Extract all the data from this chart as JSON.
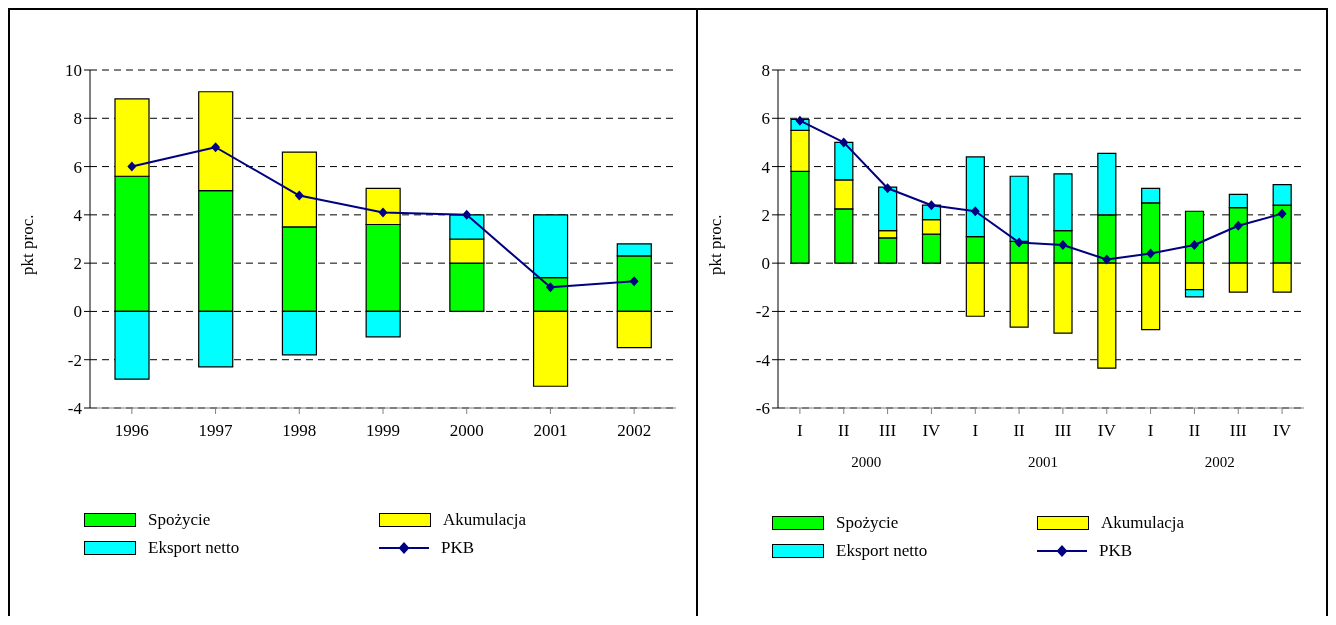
{
  "chart_data": [
    {
      "type": "bar",
      "stacked": true,
      "ylabel": "pkt proc.",
      "categories": [
        "1996",
        "1997",
        "1998",
        "1999",
        "2000",
        "2001",
        "2002"
      ],
      "ylim": [
        -4,
        10
      ],
      "yticks": [
        -4,
        -2,
        0,
        2,
        4,
        6,
        8,
        10
      ],
      "grid": "y",
      "legend": "bottom",
      "marker": "diamond",
      "series": [
        {
          "name": "Spożycie",
          "color": "#00ff00",
          "values": [
            5.6,
            5.0,
            3.5,
            3.6,
            2.0,
            1.4,
            2.3
          ]
        },
        {
          "name": "Akumulacja",
          "color": "#ffff00",
          "values": [
            3.2,
            4.1,
            3.1,
            1.5,
            1.0,
            -3.1,
            -1.5
          ]
        },
        {
          "name": "Eksport netto",
          "color": "#00ffff",
          "values": [
            -2.8,
            -2.3,
            -1.8,
            -1.05,
            1.0,
            2.6,
            0.5
          ]
        },
        {
          "name": "PKB",
          "type": "line",
          "color": "#000080",
          "values": [
            6.0,
            6.8,
            4.8,
            4.1,
            4.0,
            1.0,
            1.25
          ]
        }
      ]
    },
    {
      "type": "bar",
      "stacked": true,
      "ylabel": "pkt proc.",
      "categories": [
        "I",
        "II",
        "III",
        "IV",
        "I",
        "II",
        "III",
        "IV",
        "I",
        "II",
        "III",
        "IV"
      ],
      "ylim": [
        -6,
        8
      ],
      "yticks": [
        -6,
        -4,
        -2,
        0,
        2,
        4,
        6,
        8
      ],
      "grid": "y",
      "legend": "bottom",
      "marker": "diamond",
      "annotations": [
        "2000",
        "2001",
        "2002"
      ],
      "series": [
        {
          "name": "Spożycie",
          "color": "#00ff00",
          "values": [
            3.8,
            2.25,
            1.05,
            1.2,
            1.1,
            0.9,
            1.35,
            2.0,
            2.5,
            2.15,
            2.3,
            2.4
          ]
        },
        {
          "name": "Akumulacja",
          "color": "#ffff00",
          "values": [
            1.7,
            1.2,
            0.3,
            0.6,
            -2.2,
            -2.65,
            -2.9,
            -4.35,
            -2.75,
            -1.1,
            -1.2,
            -1.2
          ]
        },
        {
          "name": "Eksport netto",
          "color": "#00ffff",
          "values": [
            0.45,
            1.55,
            1.8,
            0.6,
            3.3,
            2.7,
            2.35,
            2.55,
            0.6,
            -0.3,
            0.55,
            0.85
          ]
        },
        {
          "name": "PKB",
          "type": "line",
          "color": "#000080",
          "values": [
            5.9,
            5.0,
            3.1,
            2.4,
            2.15,
            0.85,
            0.75,
            0.15,
            0.4,
            0.75,
            1.55,
            2.05
          ]
        }
      ]
    }
  ]
}
